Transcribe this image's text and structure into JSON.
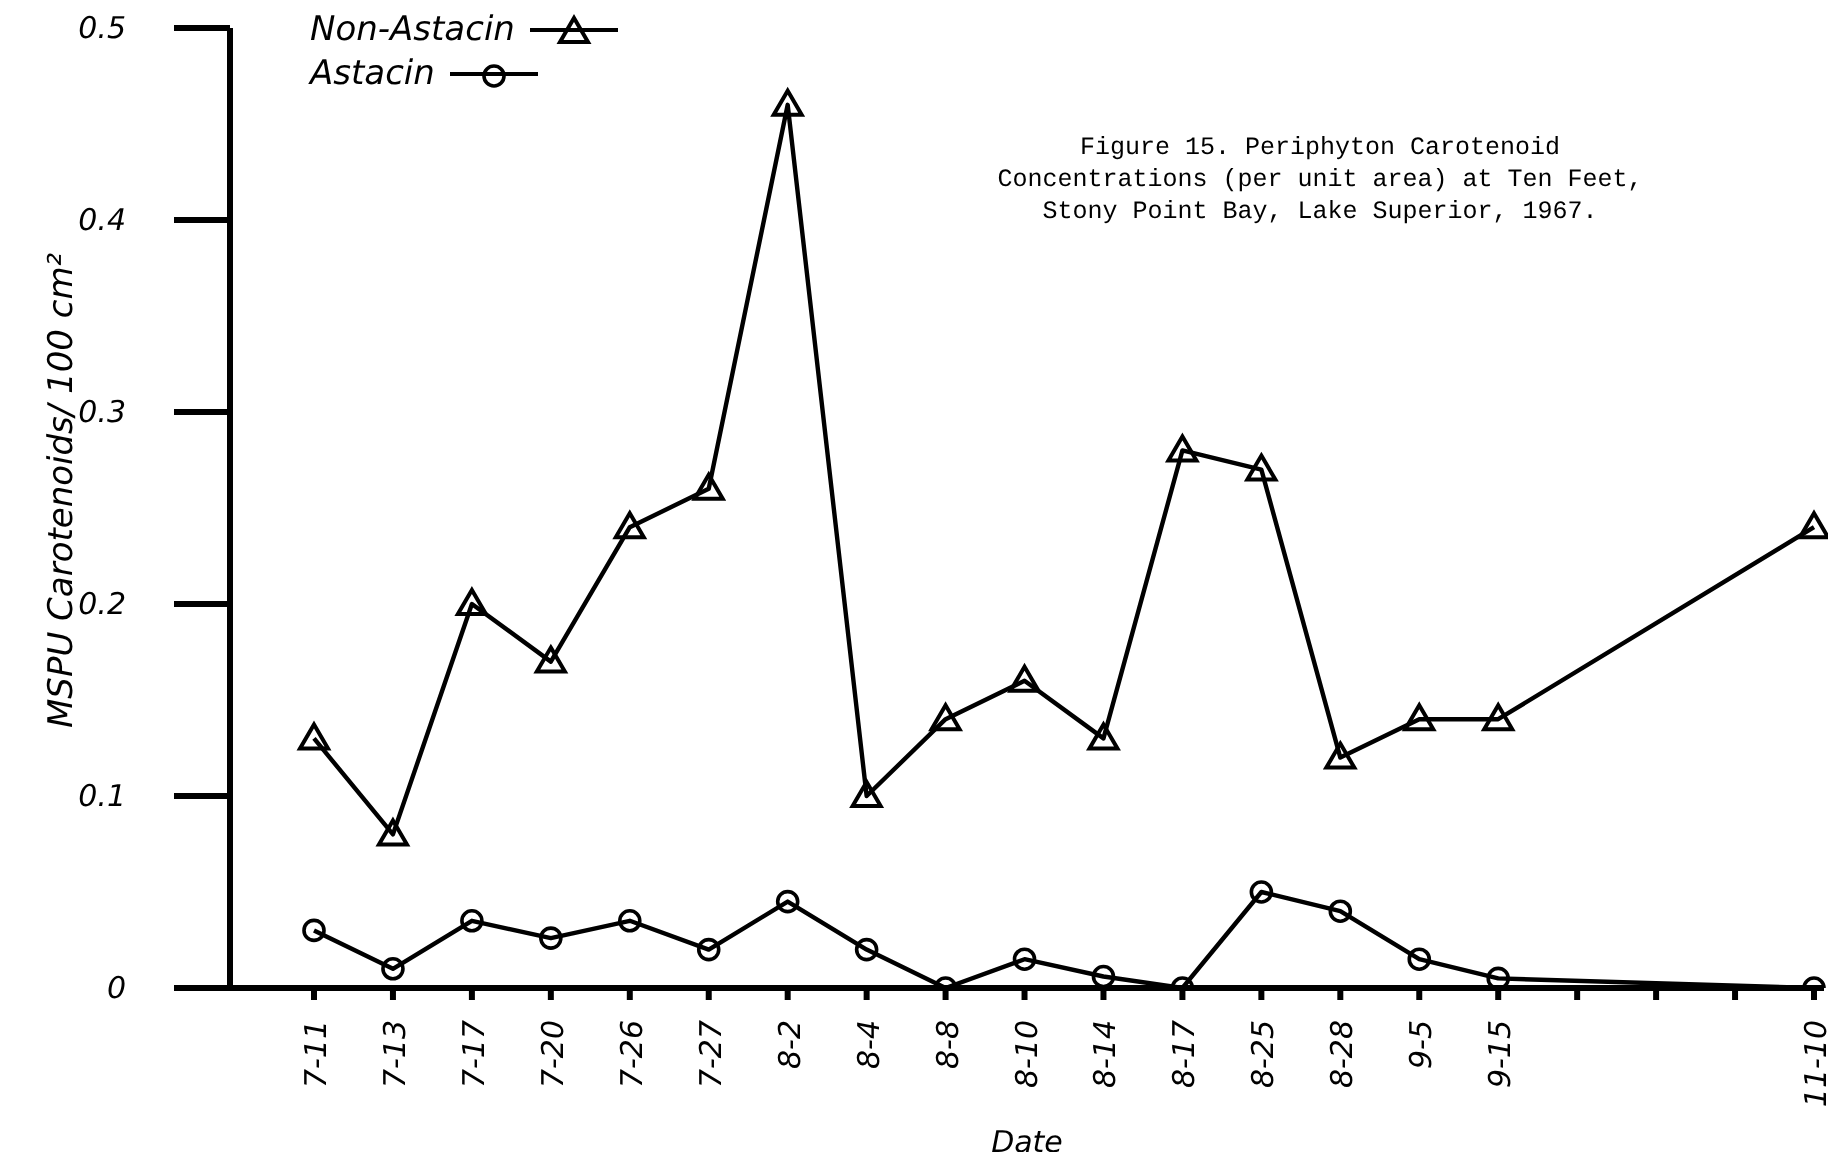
{
  "chart_data": {
    "type": "line",
    "title": "Figure 15.  Periphyton Carotenoid Concentrations (per unit area) at Ten Feet, Stony Point Bay, Lake Superior, 1967.",
    "xlabel": "Date",
    "ylabel": "MSPU Carotenoids/  100 cm²",
    "categories": [
      "7-11",
      "7-13",
      "7-17",
      "7-20",
      "7-26",
      "7-27",
      "8-2",
      "8-4",
      "8-8",
      "8-10",
      "8-14",
      "8-17",
      "8-25",
      "8-28",
      "9-5",
      "9-15",
      null,
      null,
      null,
      "11-10"
    ],
    "series": [
      {
        "name": "Non-Astacin",
        "color": "#000000",
        "marker": "triangle",
        "values": [
          0.13,
          0.08,
          0.2,
          0.17,
          0.24,
          0.26,
          0.46,
          0.1,
          0.14,
          0.16,
          0.13,
          0.28,
          0.27,
          0.12,
          0.14,
          0.14,
          null,
          null,
          null,
          0.24
        ]
      },
      {
        "name": "Astacin",
        "color": "#000000",
        "marker": "circle",
        "values": [
          0.03,
          0.01,
          0.035,
          0.026,
          0.035,
          0.02,
          0.045,
          0.02,
          0,
          0.015,
          0.006,
          0,
          0.05,
          0.04,
          0.015,
          0.005,
          null,
          null,
          null,
          0
        ]
      }
    ],
    "ylim": [
      0,
      0.5
    ],
    "yticks": [
      0,
      0.1,
      0.2,
      0.3,
      0.4,
      0.5
    ],
    "grid": false,
    "legend": "top left",
    "line_style": "solid"
  }
}
